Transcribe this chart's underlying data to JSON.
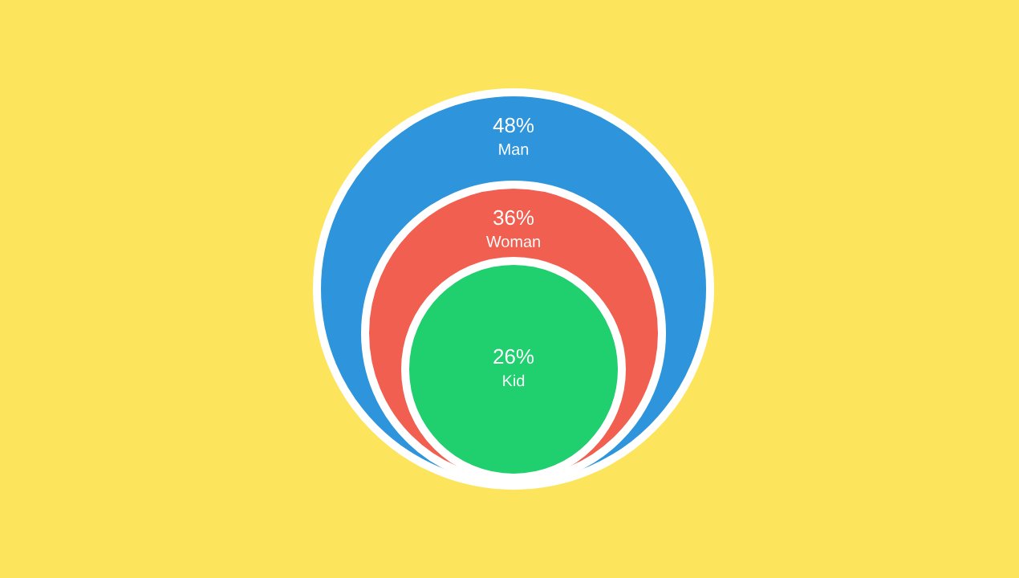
{
  "chart_data": {
    "type": "other",
    "categories": [
      "Man",
      "Woman",
      "Kid"
    ],
    "values": [
      48,
      36,
      26
    ],
    "colors": [
      "#2e95dc",
      "#f15f50",
      "#20cf6e"
    ],
    "value_labels": [
      "48%",
      "36%",
      "26%"
    ]
  }
}
